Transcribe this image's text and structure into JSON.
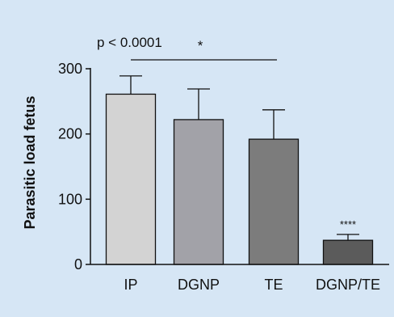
{
  "chart_data": {
    "type": "bar",
    "categories": [
      "IP",
      "DGNP",
      "TE",
      "DGNP/TE"
    ],
    "values": [
      261,
      222,
      192,
      37
    ],
    "errors": [
      28,
      47,
      45,
      9
    ],
    "bar_colors": [
      "#d3d3d3",
      "#a2a2a8",
      "#7c7c7c",
      "#5b5b5b"
    ],
    "ylabel": "Parasitic load fetus",
    "xlabel": "",
    "ylim": [
      0,
      300
    ],
    "yticks": [
      0,
      100,
      200,
      300
    ],
    "annotations": {
      "comparison_text": "p < 0.0001",
      "comparison_star": "*",
      "comparison_span": [
        "IP",
        "TE"
      ],
      "bar_significance": {
        "category": "DGNP/TE",
        "text": "****"
      }
    },
    "grid": false,
    "legend": "none"
  },
  "colors": {
    "background": "#d6e6f5",
    "axis": "#111111"
  }
}
